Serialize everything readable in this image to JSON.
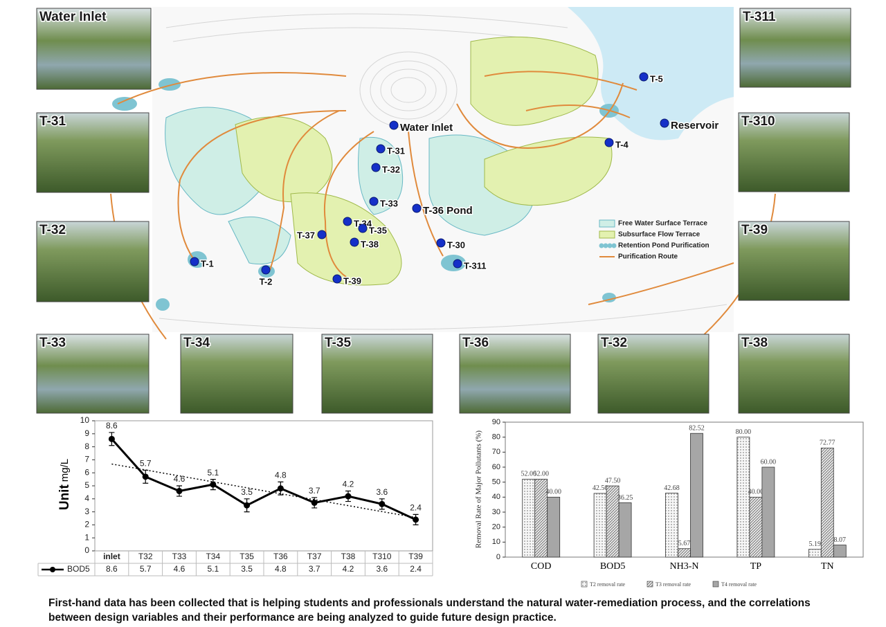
{
  "map": {
    "points": [
      "Water Inlet",
      "Reservoir",
      "T-5",
      "T-4",
      "T-31",
      "T-32",
      "T-33",
      "T-34",
      "T-35",
      "T-36 Pond",
      "T-37",
      "T-38",
      "T-39",
      "T-30",
      "T-311",
      "T-1",
      "T-2"
    ],
    "legend": [
      "Free Water Surface Terrace",
      "Subsurface Flow Terrace",
      "Retention Pond Purification",
      "Purification Route"
    ]
  },
  "photos": [
    "Water Inlet",
    "T-31",
    "T-32",
    "T-311",
    "T-310",
    "T-39",
    "T-33",
    "T-34",
    "T-35",
    "T-36",
    "T-32",
    "T-38"
  ],
  "chart_data": [
    {
      "type": "line",
      "y_label": {
        "unit": "Unit",
        "label": "mg/L"
      },
      "categories": [
        "inlet",
        "T32",
        "T33",
        "T34",
        "T35",
        "T36",
        "T37",
        "T38",
        "T310",
        "T39"
      ],
      "series": [
        {
          "name": "BOD5",
          "color": "#000000",
          "values": [
            8.6,
            5.7,
            4.6,
            5.1,
            3.5,
            4.8,
            3.7,
            4.2,
            3.6,
            2.4
          ],
          "errors": [
            0.5,
            0.5,
            0.4,
            0.4,
            0.5,
            0.5,
            0.4,
            0.4,
            0.4,
            0.4
          ]
        }
      ],
      "ylim": [
        0,
        10
      ],
      "yticks": [
        0,
        1,
        2,
        3,
        4,
        5,
        6,
        7,
        8,
        9,
        10
      ],
      "trendline": true
    },
    {
      "type": "grouped_bar",
      "y_label": "Removal Rate of Major Pollutants (%)",
      "categories": [
        "COD",
        "BOD5",
        "NH3-N",
        "TP",
        "TN"
      ],
      "series": [
        {
          "name": "T2 removal rate",
          "color": "#f2f2f2",
          "pattern": "dots",
          "values": [
            52.0,
            42.5,
            42.68,
            80.0,
            5.19
          ],
          "value_labels": [
            "52.00",
            "42.50",
            "42.68",
            "80.00",
            "5.19"
          ]
        },
        {
          "name": "T3 removal rate",
          "color": "#e6e6e6",
          "pattern": "hatch",
          "values": [
            52.0,
            47.5,
            5.67,
            40.0,
            72.77
          ],
          "value_labels": [
            "52.00",
            "47.50",
            "5.67",
            "40.00",
            "72.77"
          ]
        },
        {
          "name": "T4 removal rate",
          "color": "#a6a6a6",
          "pattern": "solid",
          "values": [
            40.0,
            36.25,
            82.52,
            60.0,
            8.07
          ],
          "value_labels": [
            "40.00",
            "36.25",
            "82.52",
            "60.00",
            "8.07"
          ]
        }
      ],
      "ylim": [
        0,
        90
      ],
      "yticks": [
        0,
        10,
        20,
        30,
        40,
        50,
        60,
        70,
        80,
        90
      ]
    }
  ],
  "caption": [
    "First-hand data has been collected that is helping students and professionals understand the natural water-remediation process, and the correlations",
    "between design variables and their performance are being analyzed to guide future design practice."
  ]
}
